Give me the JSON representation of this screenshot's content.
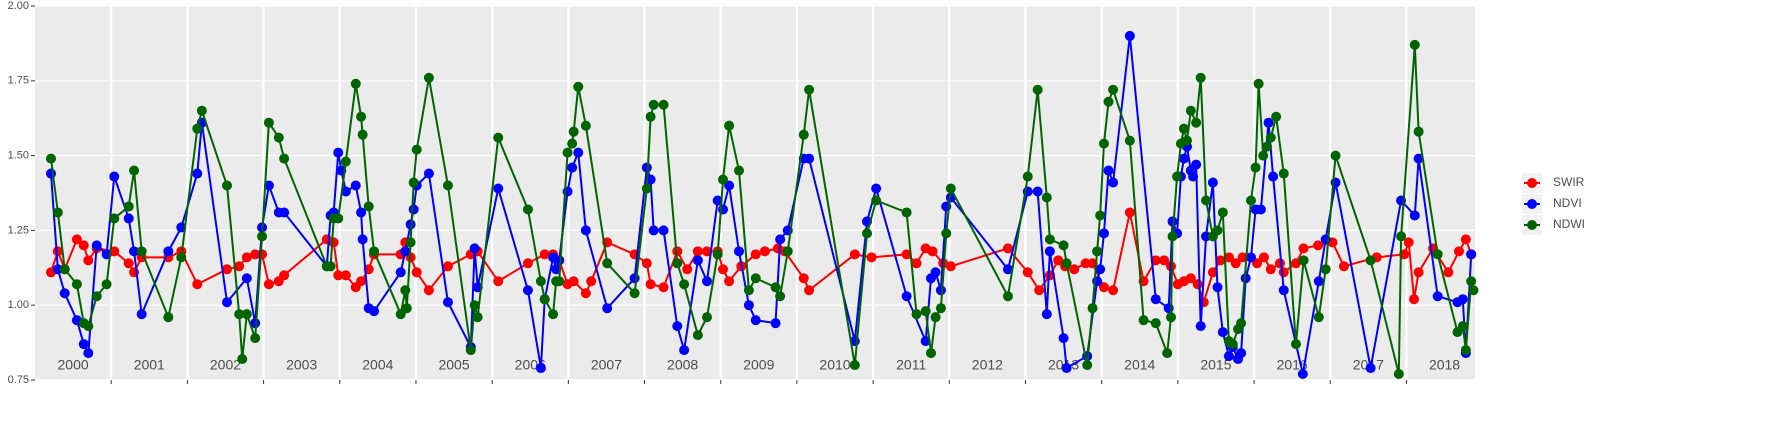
{
  "chart_data": {
    "type": "line",
    "xlim": [
      2000,
      2018.9
    ],
    "xticks": [
      2001,
      2002,
      2003,
      2004,
      2005,
      2006,
      2007,
      2008,
      2009,
      2010,
      2011,
      2012,
      2013,
      2014,
      2015,
      2016,
      2017,
      2018
    ],
    "year_labels": [
      2000,
      2001,
      2002,
      2003,
      2004,
      2005,
      2006,
      2007,
      2008,
      2009,
      2010,
      2011,
      2012,
      2013,
      2014,
      2015,
      2016,
      2017,
      2018
    ],
    "ylim": [
      0.75,
      2.0
    ],
    "yticks": [
      {
        "value": 0.75,
        "label": "0.75"
      },
      {
        "value": 1.0,
        "label": "1.00"
      },
      {
        "value": 1.25,
        "label": "1.25"
      },
      {
        "value": 1.5,
        "label": "1.50"
      },
      {
        "value": 1.75,
        "label": "1.75"
      },
      {
        "value": 2.0,
        "label": "2.00"
      }
    ],
    "grid": true,
    "legend_position": "right",
    "series": [
      {
        "name": "SWIR",
        "color": "#ff0000",
        "x": [
          2000.21,
          2000.3,
          2000.39,
          2000.55,
          2000.64,
          2000.7,
          2000.81,
          2001.04,
          2001.23,
          2001.3,
          2001.4,
          2001.75,
          2001.92,
          2002.13,
          2002.52,
          2002.68,
          2002.78,
          2002.89,
          2002.98,
          2003.07,
          2003.2,
          2003.27,
          2003.83,
          2003.92,
          2003.98,
          2004.08,
          2004.21,
          2004.28,
          2004.38,
          2004.45,
          2004.8,
          2004.86,
          2004.93,
          2005.01,
          2005.17,
          2005.42,
          2005.72,
          2005.81,
          2006.08,
          2006.47,
          2006.69,
          2006.8,
          2006.88,
          2006.99,
          2007.07,
          2007.23,
          2007.3,
          2007.51,
          2007.87,
          2008.03,
          2008.08,
          2008.25,
          2008.43,
          2008.56,
          2008.7,
          2008.82,
          2008.96,
          2009.03,
          2009.11,
          2009.27,
          2009.46,
          2009.58,
          2009.75,
          2009.84,
          2010.09,
          2010.16,
          2010.76,
          2010.98,
          2011.44,
          2011.57,
          2011.69,
          2011.78,
          2011.92,
          2012.02,
          2012.77,
          2013.03,
          2013.18,
          2013.32,
          2013.43,
          2013.52,
          2013.64,
          2013.79,
          2013.88,
          2014.03,
          2014.15,
          2014.37,
          2014.55,
          2014.71,
          2014.82,
          2014.91,
          2015.0,
          2015.08,
          2015.17,
          2015.26,
          2015.34,
          2015.46,
          2015.56,
          2015.67,
          2015.76,
          2015.85,
          2016.04,
          2016.13,
          2016.22,
          2016.34,
          2016.39,
          2016.55,
          2016.65,
          2016.84,
          2017.03,
          2017.18,
          2017.61,
          2017.97,
          2018.03,
          2018.1,
          2018.16,
          2018.35,
          2018.55,
          2018.69,
          2018.78,
          2018.85
        ],
        "values": [
          1.11,
          1.18,
          1.12,
          1.22,
          1.2,
          1.15,
          1.19,
          1.18,
          1.14,
          1.11,
          1.16,
          1.16,
          1.18,
          1.07,
          1.12,
          1.13,
          1.16,
          1.17,
          1.17,
          1.07,
          1.08,
          1.1,
          1.22,
          1.21,
          1.1,
          1.1,
          1.06,
          1.08,
          1.12,
          1.17,
          1.17,
          1.21,
          1.16,
          1.11,
          1.05,
          1.13,
          1.17,
          1.18,
          1.08,
          1.14,
          1.17,
          1.17,
          1.15,
          1.07,
          1.08,
          1.04,
          1.08,
          1.21,
          1.17,
          1.14,
          1.07,
          1.06,
          1.18,
          1.12,
          1.18,
          1.18,
          1.18,
          1.12,
          1.08,
          1.13,
          1.17,
          1.18,
          1.19,
          1.18,
          1.09,
          1.05,
          1.17,
          1.16,
          1.17,
          1.14,
          1.19,
          1.18,
          1.14,
          1.13,
          1.19,
          1.11,
          1.05,
          1.1,
          1.15,
          1.13,
          1.12,
          1.14,
          1.14,
          1.06,
          1.05,
          1.31,
          1.08,
          1.15,
          1.15,
          1.13,
          1.07,
          1.08,
          1.09,
          1.07,
          1.01,
          1.11,
          1.15,
          1.16,
          1.14,
          1.16,
          1.14,
          1.16,
          1.12,
          1.14,
          1.11,
          1.14,
          1.19,
          1.2,
          1.21,
          1.13,
          1.16,
          1.17,
          1.21,
          1.02,
          1.11,
          1.19,
          1.11,
          1.18,
          1.22,
          1.17
        ]
      },
      {
        "name": "NDVI",
        "color": "#0000ff",
        "x": [
          2000.21,
          2000.3,
          2000.39,
          2000.55,
          2000.64,
          2000.7,
          2000.81,
          2000.94,
          2001.04,
          2001.23,
          2001.3,
          2001.4,
          2001.75,
          2001.92,
          2002.13,
          2002.19,
          2002.52,
          2002.78,
          2002.89,
          2002.98,
          2003.07,
          2003.2,
          2003.27,
          2003.83,
          2003.88,
          2003.92,
          2003.98,
          2004.02,
          2004.08,
          2004.21,
          2004.28,
          2004.3,
          2004.38,
          2004.45,
          2004.8,
          2004.86,
          2004.93,
          2004.97,
          2005.01,
          2005.17,
          2005.42,
          2005.72,
          2005.77,
          2005.81,
          2006.08,
          2006.47,
          2006.64,
          2006.69,
          2006.8,
          2006.84,
          2006.88,
          2006.99,
          2007.05,
          2007.13,
          2007.23,
          2007.51,
          2007.87,
          2008.03,
          2008.08,
          2008.12,
          2008.25,
          2008.43,
          2008.52,
          2008.7,
          2008.82,
          2008.96,
          2009.03,
          2009.11,
          2009.24,
          2009.37,
          2009.46,
          2009.72,
          2009.78,
          2009.88,
          2010.09,
          2010.16,
          2010.76,
          2010.92,
          2011.04,
          2011.44,
          2011.69,
          2011.76,
          2011.82,
          2011.89,
          2011.96,
          2012.02,
          2012.77,
          2013.03,
          2013.16,
          2013.28,
          2013.32,
          2013.5,
          2013.54,
          2013.81,
          2013.94,
          2013.98,
          2014.03,
          2014.09,
          2014.15,
          2014.37,
          2014.71,
          2014.88,
          2014.93,
          2014.99,
          2015.04,
          2015.08,
          2015.12,
          2015.17,
          2015.2,
          2015.24,
          2015.3,
          2015.37,
          2015.46,
          2015.52,
          2015.59,
          2015.67,
          2015.72,
          2015.79,
          2015.83,
          2015.89,
          2015.96,
          2016.02,
          2016.09,
          2016.19,
          2016.25,
          2016.39,
          2016.64,
          2016.85,
          2016.94,
          2017.07,
          2017.53,
          2017.93,
          2018.11,
          2018.16,
          2018.41,
          2018.67,
          2018.74,
          2018.78,
          2018.85
        ],
        "values": [
          1.44,
          1.12,
          1.04,
          0.95,
          0.87,
          0.84,
          1.2,
          1.17,
          1.43,
          1.29,
          1.18,
          0.97,
          1.18,
          1.26,
          1.44,
          1.61,
          1.01,
          1.09,
          0.94,
          1.26,
          1.4,
          1.31,
          1.31,
          1.13,
          1.3,
          1.31,
          1.51,
          1.45,
          1.38,
          1.4,
          1.31,
          1.22,
          0.99,
          0.98,
          1.11,
          1.18,
          1.27,
          1.32,
          1.4,
          1.44,
          1.01,
          0.86,
          1.19,
          1.06,
          1.39,
          1.05,
          0.79,
          1.02,
          1.16,
          1.12,
          1.15,
          1.38,
          1.46,
          1.51,
          1.25,
          0.99,
          1.09,
          1.46,
          1.42,
          1.25,
          1.25,
          0.93,
          0.85,
          1.15,
          1.08,
          1.35,
          1.32,
          1.4,
          1.18,
          1.0,
          0.95,
          0.94,
          1.22,
          1.25,
          1.49,
          1.49,
          0.88,
          1.28,
          1.39,
          1.03,
          0.88,
          1.09,
          1.11,
          1.05,
          1.33,
          1.36,
          1.12,
          1.38,
          1.38,
          0.97,
          1.18,
          0.89,
          0.79,
          0.83,
          1.08,
          1.12,
          1.24,
          1.45,
          1.41,
          1.9,
          1.02,
          0.99,
          1.28,
          1.24,
          1.43,
          1.49,
          1.53,
          1.45,
          1.43,
          1.47,
          0.93,
          1.23,
          1.41,
          1.06,
          0.91,
          0.83,
          0.86,
          0.82,
          0.84,
          1.09,
          1.16,
          1.32,
          1.32,
          1.61,
          1.43,
          1.05,
          0.77,
          1.08,
          1.22,
          1.41,
          0.79,
          1.35,
          1.3,
          1.49,
          1.03,
          1.01,
          1.02,
          0.84,
          1.17
        ]
      },
      {
        "name": "NDWI",
        "color": "#006400",
        "x": [
          2000.21,
          2000.3,
          2000.39,
          2000.55,
          2000.64,
          2000.7,
          2000.81,
          2000.94,
          2001.04,
          2001.23,
          2001.3,
          2001.4,
          2001.75,
          2001.92,
          2002.13,
          2002.19,
          2002.52,
          2002.68,
          2002.72,
          2002.78,
          2002.89,
          2002.98,
          2003.07,
          2003.2,
          2003.27,
          2003.83,
          2003.88,
          2003.92,
          2003.98,
          2004.08,
          2004.21,
          2004.28,
          2004.3,
          2004.38,
          2004.45,
          2004.8,
          2004.86,
          2004.88,
          2004.93,
          2004.97,
          2005.01,
          2005.17,
          2005.42,
          2005.72,
          2005.77,
          2005.81,
          2006.08,
          2006.47,
          2006.64,
          2006.69,
          2006.8,
          2006.84,
          2006.88,
          2006.99,
          2007.05,
          2007.07,
          2007.13,
          2007.23,
          2007.51,
          2007.87,
          2008.03,
          2008.08,
          2008.12,
          2008.25,
          2008.43,
          2008.52,
          2008.7,
          2008.82,
          2008.96,
          2009.03,
          2009.11,
          2009.24,
          2009.37,
          2009.46,
          2009.72,
          2009.78,
          2009.88,
          2010.09,
          2010.16,
          2010.76,
          2010.92,
          2011.04,
          2011.44,
          2011.57,
          2011.69,
          2011.76,
          2011.82,
          2011.89,
          2011.96,
          2012.02,
          2012.77,
          2013.03,
          2013.16,
          2013.28,
          2013.32,
          2013.5,
          2013.54,
          2013.81,
          2013.88,
          2013.94,
          2013.98,
          2014.03,
          2014.09,
          2014.15,
          2014.37,
          2014.55,
          2014.71,
          2014.86,
          2014.91,
          2014.93,
          2014.99,
          2015.04,
          2015.08,
          2015.12,
          2015.17,
          2015.24,
          2015.3,
          2015.37,
          2015.46,
          2015.52,
          2015.59,
          2015.67,
          2015.72,
          2015.79,
          2015.83,
          2015.96,
          2016.02,
          2016.06,
          2016.12,
          2016.17,
          2016.22,
          2016.29,
          2016.39,
          2016.55,
          2016.65,
          2016.85,
          2016.94,
          2017.07,
          2017.53,
          2017.9,
          2017.93,
          2018.11,
          2018.16,
          2018.41,
          2018.67,
          2018.74,
          2018.78,
          2018.85,
          2018.88
        ],
        "values": [
          1.49,
          1.31,
          1.12,
          1.07,
          0.94,
          0.93,
          1.03,
          1.07,
          1.29,
          1.33,
          1.45,
          1.18,
          0.96,
          1.16,
          1.59,
          1.65,
          1.4,
          0.97,
          0.82,
          0.97,
          0.89,
          1.23,
          1.61,
          1.56,
          1.49,
          1.13,
          1.13,
          1.29,
          1.29,
          1.48,
          1.74,
          1.63,
          1.57,
          1.33,
          1.18,
          0.97,
          1.05,
          0.99,
          1.21,
          1.41,
          1.52,
          1.76,
          1.4,
          0.85,
          1.0,
          0.96,
          1.56,
          1.32,
          1.08,
          1.02,
          0.97,
          1.08,
          1.08,
          1.51,
          1.54,
          1.58,
          1.73,
          1.6,
          1.14,
          1.04,
          1.39,
          1.63,
          1.67,
          1.67,
          1.14,
          1.07,
          0.9,
          0.96,
          1.17,
          1.42,
          1.6,
          1.45,
          1.05,
          1.09,
          1.06,
          1.03,
          1.18,
          1.57,
          1.72,
          0.8,
          1.24,
          1.35,
          1.31,
          0.97,
          0.98,
          0.84,
          0.96,
          0.99,
          1.24,
          1.39,
          1.03,
          1.43,
          1.72,
          1.36,
          1.22,
          1.2,
          1.14,
          0.8,
          0.99,
          1.18,
          1.3,
          1.54,
          1.68,
          1.72,
          1.55,
          0.95,
          0.94,
          0.84,
          0.96,
          1.23,
          1.43,
          1.54,
          1.59,
          1.55,
          1.65,
          1.61,
          1.76,
          1.35,
          1.23,
          1.25,
          1.31,
          0.88,
          0.87,
          0.92,
          0.94,
          1.35,
          1.46,
          1.74,
          1.5,
          1.53,
          1.56,
          1.63,
          1.44,
          0.87,
          1.15,
          0.96,
          1.12,
          1.5,
          1.15,
          0.77,
          1.23,
          1.87,
          1.58,
          1.17,
          0.91,
          0.93,
          0.85,
          1.08,
          1.05
        ]
      }
    ]
  }
}
